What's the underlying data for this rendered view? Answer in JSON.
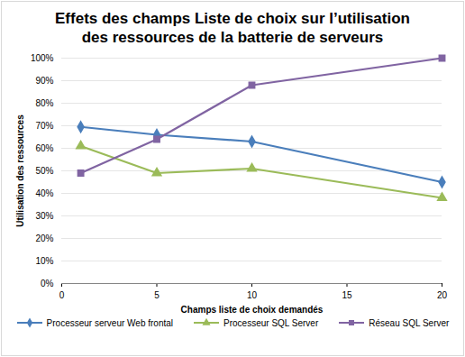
{
  "chart_data": {
    "type": "line",
    "title": "Effets des champs Liste de choix sur l’utilisation des ressources de la batterie de serveurs",
    "x_label": "Champs liste de choix demandés",
    "y_label": "Utilisation des ressources",
    "x": [
      1,
      5,
      10,
      20
    ],
    "series": [
      {
        "name": "Processeur serveur Web frontal",
        "color": "#4a7ebb",
        "marker": "diamond",
        "values": [
          69.5,
          66,
          63,
          45
        ]
      },
      {
        "name": "Processeur SQL Server",
        "color": "#9bbb59",
        "marker": "triangle",
        "values": [
          61,
          49,
          51,
          38
        ]
      },
      {
        "name": "Réseau SQL Server",
        "color": "#8064a2",
        "marker": "square",
        "values": [
          49,
          64,
          88,
          100
        ]
      }
    ],
    "xlim": [
      0,
      20
    ],
    "xticks": [
      0,
      5,
      10,
      15,
      20
    ],
    "ylim": [
      0,
      100
    ],
    "yticks": [
      {
        "value": 0,
        "label": "0%"
      },
      {
        "value": 10,
        "label": "10%"
      },
      {
        "value": 20,
        "label": "20%"
      },
      {
        "value": 30,
        "label": "30%"
      },
      {
        "value": 40,
        "label": "40%"
      },
      {
        "value": 50,
        "label": "50%"
      },
      {
        "value": 60,
        "label": "60%"
      },
      {
        "value": 70,
        "label": "70%"
      },
      {
        "value": 80,
        "label": "80%"
      },
      {
        "value": 90,
        "label": "90%"
      },
      {
        "value": 100,
        "label": "100%"
      }
    ],
    "grid": true,
    "legend": "bottom"
  }
}
